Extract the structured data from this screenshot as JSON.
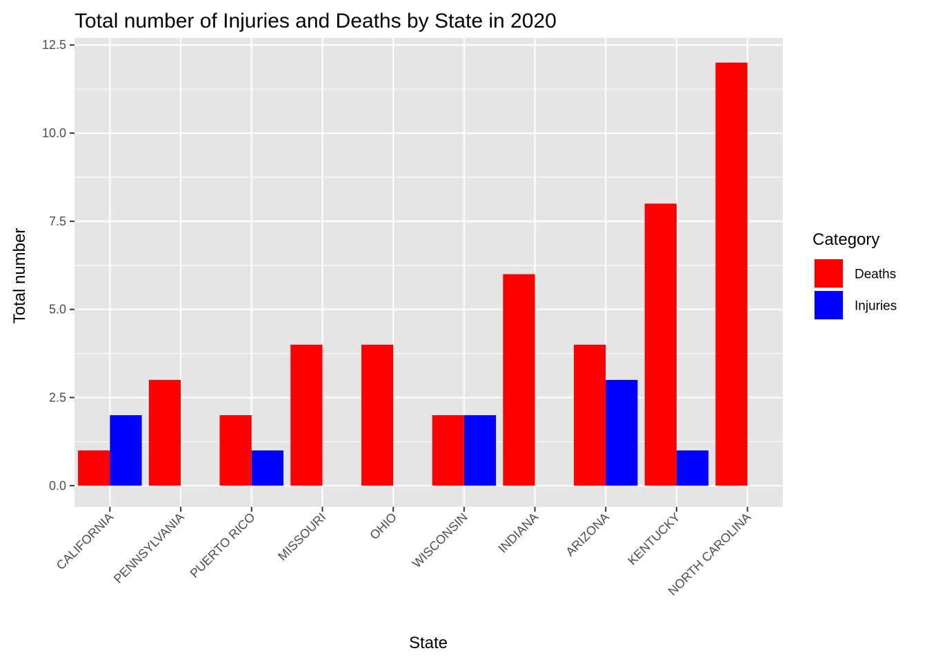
{
  "chart_data": {
    "type": "bar",
    "title": "Total number of Injuries and Deaths by State in 2020",
    "xlabel": "State",
    "ylabel": "Total number",
    "categories": [
      "CALIFORNIA",
      "PENNSYLVANIA",
      "PUERTO RICO",
      "MISSOURI",
      "OHIO",
      "WISCONSIN",
      "INDIANA",
      "ARIZONA",
      "KENTUCKY",
      "NORTH CAROLINA"
    ],
    "series": [
      {
        "name": "Deaths",
        "color": "#ff0000",
        "values": [
          1,
          3,
          2,
          4,
          4,
          2,
          6,
          4,
          8,
          12
        ]
      },
      {
        "name": "Injuries",
        "color": "#0000ff",
        "values": [
          2,
          null,
          1,
          null,
          null,
          2,
          null,
          3,
          1,
          null
        ]
      }
    ],
    "ylim": [
      -0.6,
      12.7
    ],
    "yticks": [
      "0.0",
      "2.5",
      "5.0",
      "7.5",
      "10.0",
      "12.5"
    ],
    "ytick_values": [
      0,
      2.5,
      5,
      7.5,
      10,
      12.5
    ],
    "legend": {
      "title": "Category",
      "placement": "right"
    },
    "grid": true,
    "panel_background": "#e5e5e5",
    "grid_color": "#ffffff"
  }
}
